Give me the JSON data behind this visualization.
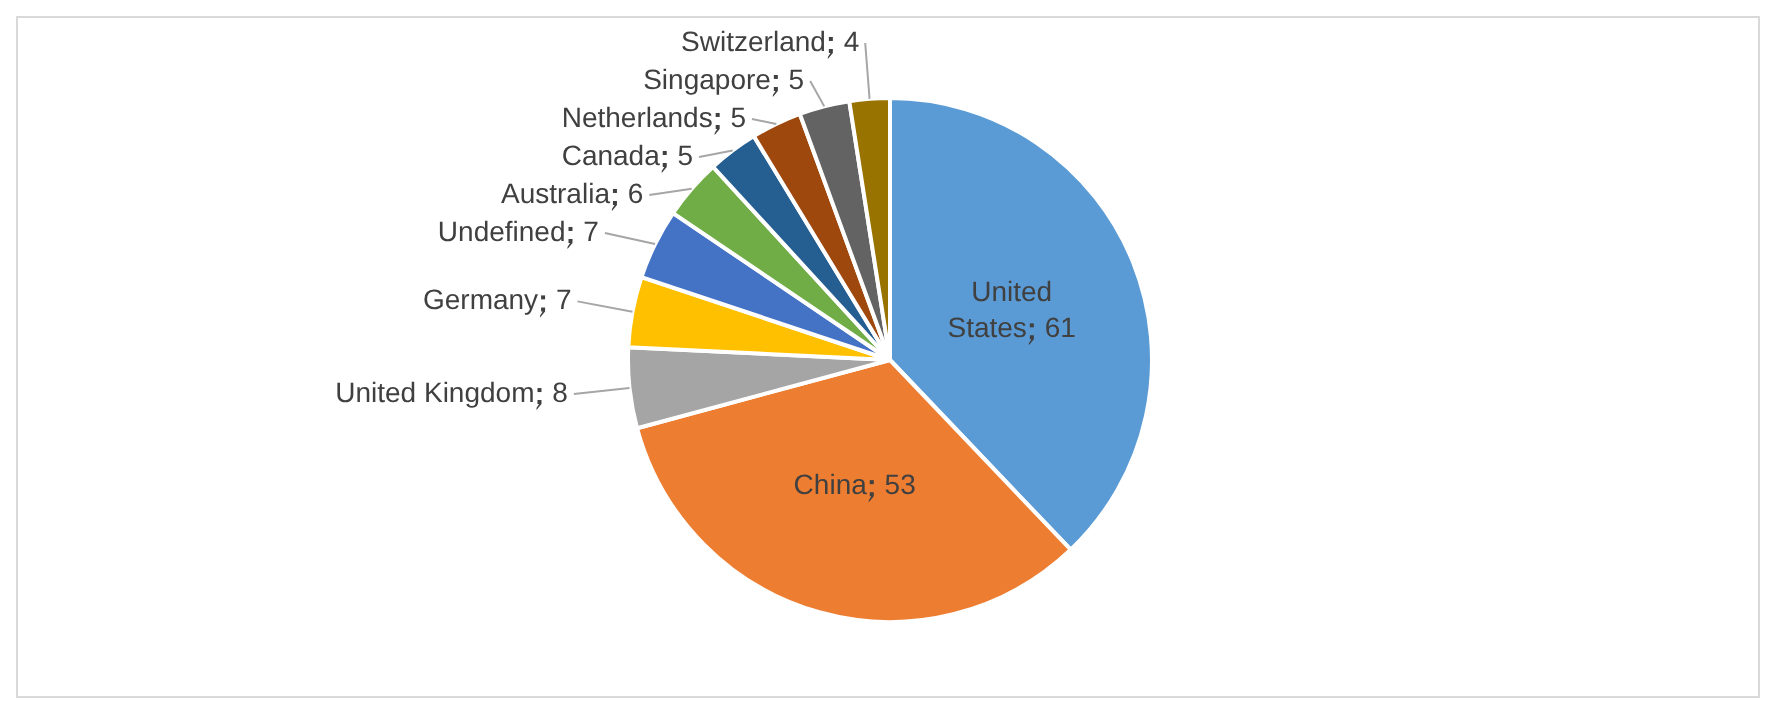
{
  "chart_data": {
    "type": "pie",
    "categories": [
      "United States",
      "China",
      "United Kingdom",
      "Germany",
      "Undefined",
      "Australia",
      "Canada",
      "Netherlands",
      "Singapore",
      "Switzerland"
    ],
    "values": [
      61,
      53,
      8,
      7,
      7,
      6,
      5,
      5,
      5,
      4
    ],
    "colors": [
      "#5b9bd5",
      "#ed7d31",
      "#a5a5a5",
      "#ffc000",
      "#4472c4",
      "#70ad47",
      "#255e91",
      "#9e480e",
      "#636363",
      "#997300"
    ],
    "data_labels": true
  }
}
